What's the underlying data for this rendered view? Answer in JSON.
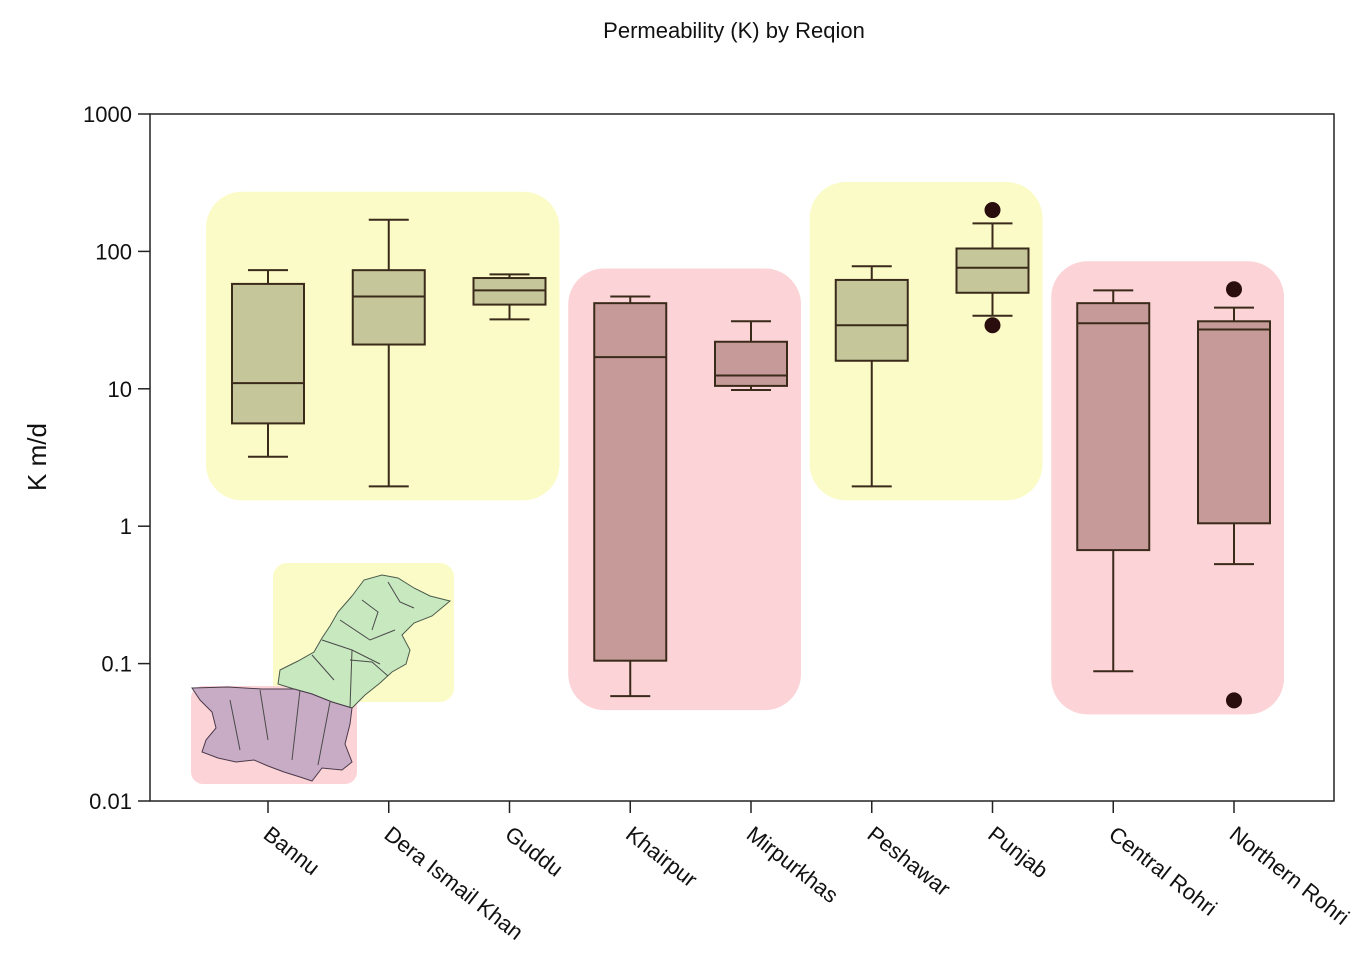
{
  "chart_data": {
    "type": "box",
    "title": "Permeability (K) by Reqion",
    "xlabel": "",
    "ylabel": "K m/d",
    "yscale": "log",
    "ylim": [
      0.01,
      1000
    ],
    "yticks": [
      {
        "value": 0.01,
        "label": "0.01"
      },
      {
        "value": 0.1,
        "label": "0.1"
      },
      {
        "value": 1,
        "label": "1"
      },
      {
        "value": 10,
        "label": "10"
      },
      {
        "value": 100,
        "label": "100"
      },
      {
        "value": 1000,
        "label": "1000"
      }
    ],
    "grid": false,
    "categories": [
      "Bannu",
      "Dera Ismail Khan",
      "Guddu",
      "Khairpur",
      "Mirpurkhas",
      "Peshawar",
      "Punjab",
      "Central Rohri",
      "Northern Rohri"
    ],
    "boxes": [
      {
        "category": "Bannu",
        "group": "yellow",
        "whisker_low": 3.2,
        "q1": 5.6,
        "median": 11,
        "q3": 58,
        "whisker_high": 73,
        "outliers": []
      },
      {
        "category": "Dera Ismail Khan",
        "group": "yellow",
        "whisker_low": 1.95,
        "q1": 21,
        "median": 47,
        "q3": 73,
        "whisker_high": 170,
        "outliers": []
      },
      {
        "category": "Guddu",
        "group": "yellow",
        "whisker_low": 32,
        "q1": 41,
        "median": 52,
        "q3": 64,
        "whisker_high": 68,
        "outliers": []
      },
      {
        "category": "Khairpur",
        "group": "red",
        "whisker_low": 0.058,
        "q1": 0.105,
        "median": 17,
        "q3": 42,
        "whisker_high": 47,
        "outliers": []
      },
      {
        "category": "Mirpurkhas",
        "group": "red",
        "whisker_low": 9.8,
        "q1": 10.5,
        "median": 12.5,
        "q3": 22,
        "whisker_high": 31,
        "outliers": []
      },
      {
        "category": "Peshawar",
        "group": "yellow",
        "whisker_low": 1.95,
        "q1": 16,
        "median": 29,
        "q3": 62,
        "whisker_high": 78,
        "outliers": []
      },
      {
        "category": "Punjab",
        "group": "yellow",
        "whisker_low": 34,
        "q1": 50,
        "median": 76,
        "q3": 105,
        "whisker_high": 160,
        "outliers": [
          200,
          29
        ]
      },
      {
        "category": "Central Rohri",
        "group": "red",
        "whisker_low": 0.088,
        "q1": 0.67,
        "median": 30,
        "q3": 42,
        "whisker_high": 52,
        "outliers": []
      },
      {
        "category": "Northern Rohri",
        "group": "red",
        "whisker_low": 0.53,
        "q1": 1.05,
        "median": 27,
        "q3": 31,
        "whisker_high": 39,
        "outliers": [
          53,
          0.054
        ]
      }
    ],
    "group_highlights": [
      {
        "color": "yellow",
        "categories": [
          "Bannu",
          "Dera Ismail Khan",
          "Guddu"
        ]
      },
      {
        "color": "red",
        "categories": [
          "Khairpur",
          "Mirpurkhas"
        ]
      },
      {
        "color": "yellow",
        "categories": [
          "Peshawar",
          "Punjab"
        ]
      },
      {
        "color": "red",
        "categories": [
          "Central Rohri",
          "Northern Rohri"
        ]
      }
    ],
    "inset": "map-of-pakistan-regions-yellow-north-red-south"
  },
  "colors": {
    "yellow_box": "#c5c79b",
    "red_box": "#c79a9a",
    "yellow_bg": "#fbfbc8",
    "red_bg": "#fcd3d6",
    "box_stroke": "#3a2a1a",
    "outlier": "#2a0d0d",
    "map_north": "#c8e8bf",
    "map_south": "#c8acc6"
  }
}
